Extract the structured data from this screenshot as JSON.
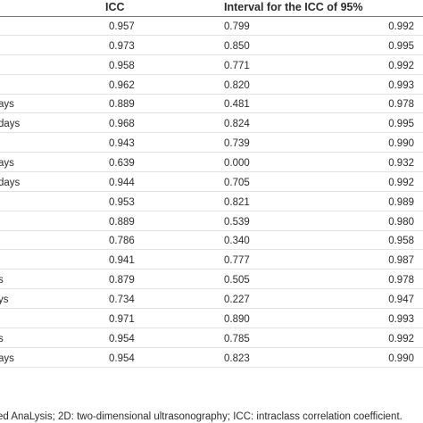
{
  "table": {
    "headers": {
      "icc": "ICC",
      "interval": "Interval for the ICC of 95%"
    },
    "rows": [
      {
        "label": "",
        "icc": "0.957",
        "lower": "0.799",
        "upper": "0.992"
      },
      {
        "label": "",
        "icc": "0.973",
        "lower": "0.850",
        "upper": "0.995"
      },
      {
        "label": "",
        "icc": "0.958",
        "lower": "0.771",
        "upper": "0.992"
      },
      {
        "label": "",
        "icc": "0.962",
        "lower": "0.820",
        "upper": "0.993"
      },
      {
        "label": "ays",
        "icc": "0.889",
        "lower": "0.481",
        "upper": "0.978"
      },
      {
        "label": "days",
        "icc": "0.968",
        "lower": "0.824",
        "upper": "0.995"
      },
      {
        "label": "",
        "icc": "0.943",
        "lower": "0.739",
        "upper": "0.990"
      },
      {
        "label": "ays",
        "icc": "0.639",
        "lower": "0.000",
        "upper": "0.932"
      },
      {
        "label": "days",
        "icc": "0.944",
        "lower": "0.705",
        "upper": "0.992"
      },
      {
        "label": "",
        "icc": "0.953",
        "lower": "0.821",
        "upper": "0.989"
      },
      {
        "label": "",
        "icc": "0.889",
        "lower": "0.539",
        "upper": "0.980"
      },
      {
        "label": "",
        "icc": "0.786",
        "lower": "0.340",
        "upper": "0.958"
      },
      {
        "label": "",
        "icc": "0.941",
        "lower": "0.777",
        "upper": "0.987"
      },
      {
        "label": "s",
        "icc": "0.879",
        "lower": "0.505",
        "upper": "0.978"
      },
      {
        "label": "ys",
        "icc": "0.734",
        "lower": "0.227",
        "upper": "0.947"
      },
      {
        "label": "",
        "icc": "0.971",
        "lower": "0.890",
        "upper": "0.993"
      },
      {
        "label": "s",
        "icc": "0.954",
        "lower": "0.785",
        "upper": "0.992"
      },
      {
        "label": "ays",
        "icc": "0.954",
        "lower": "0.823",
        "upper": "0.990"
      }
    ]
  },
  "footer": {
    "text": "ed AnaLysis; 2D: two-dimensional ultrasonography; ICC: intraclass correlation coefficient."
  }
}
